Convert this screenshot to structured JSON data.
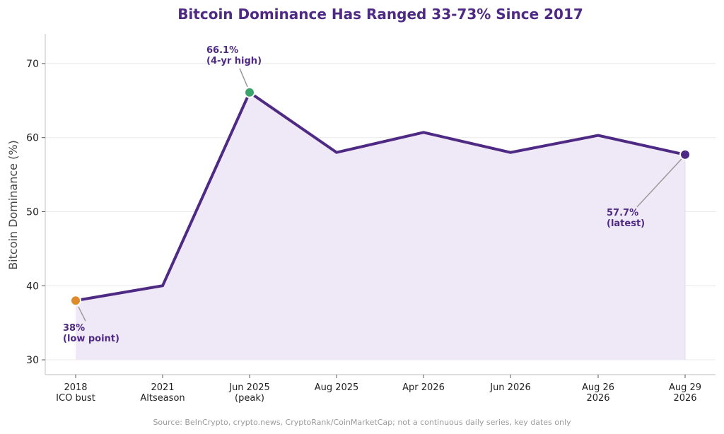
{
  "chart_data": {
    "type": "line",
    "title": "Bitcoin Dominance Has Ranged 33-73% Since 2017",
    "xlabel": "",
    "ylabel": "Bitcoin Dominance (%)",
    "ylim": [
      28,
      74
    ],
    "yticks": [
      30,
      40,
      50,
      60,
      70
    ],
    "grid": "horizontal",
    "categories": [
      [
        "2018",
        "ICO bust"
      ],
      [
        "2021",
        "Altseason"
      ],
      [
        "Jun 2025",
        "(peak)"
      ],
      [
        "Aug 2025"
      ],
      [
        "Apr 2026"
      ],
      [
        "Jun 2026"
      ],
      [
        "Aug 26",
        "2026"
      ],
      [
        "Aug 29",
        "2026"
      ]
    ],
    "series": [
      {
        "values": [
          38,
          40,
          66.1,
          58,
          60.7,
          58,
          60.3,
          57.7
        ]
      }
    ],
    "highlights": [
      {
        "index": 0,
        "color": "#e08a2e"
      },
      {
        "index": 2,
        "color": "#3aa36b"
      },
      {
        "index": 7,
        "color": "#4e2a84"
      }
    ],
    "annotations": [
      {
        "index": 0,
        "lines": [
          "38%",
          "(low point)"
        ],
        "anchor": "below-left"
      },
      {
        "index": 2,
        "lines": [
          "66.1%",
          "(4-yr high)"
        ],
        "anchor": "above-left"
      },
      {
        "index": 7,
        "lines": [
          "57.7%",
          "(latest)"
        ],
        "anchor": "below-left-far"
      }
    ],
    "source": "Source: BeInCrypto, crypto.news, CryptoRank/CoinMarketCap; not a continuous daily series, key dates only"
  },
  "colors": {
    "line": "#4e2a84",
    "fill": "#efe8f7",
    "title": "#4e2a84",
    "annotation_text": "#4e2a84",
    "leader": "#9a9a9a",
    "grid": "#e8e8e8",
    "axis": "#cccccc"
  }
}
